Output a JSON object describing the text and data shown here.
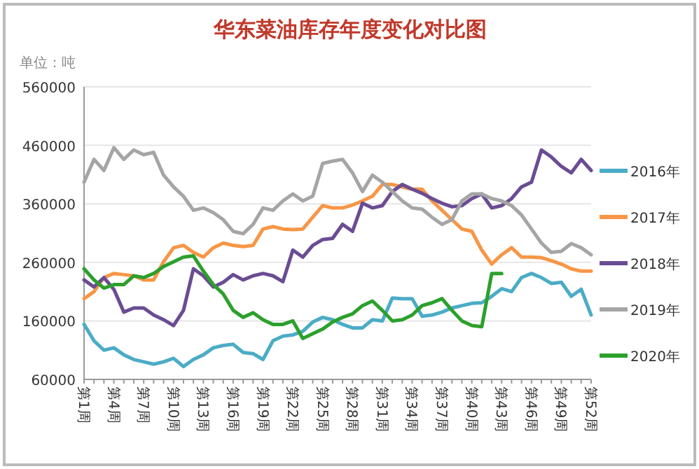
{
  "chart_data": {
    "type": "line",
    "title": "华东菜油库存年度变化对比图",
    "ylabel": "单位：吨",
    "categories": [
      "第1周",
      null,
      null,
      "第4周",
      null,
      null,
      "第7周",
      null,
      null,
      "第10周",
      null,
      null,
      "第13周",
      null,
      null,
      "第16周",
      null,
      null,
      "第19周",
      null,
      null,
      "第22周",
      null,
      null,
      "第25周",
      null,
      null,
      "第28周",
      null,
      null,
      "第31周",
      null,
      null,
      "第34周",
      null,
      null,
      "第37周",
      null,
      null,
      "第40周",
      null,
      null,
      "第43周",
      null,
      null,
      "第46周",
      null,
      null,
      "第49周",
      null,
      null,
      "第52周"
    ],
    "series": [
      {
        "name": "2016年",
        "color": "#4bacc6",
        "values": [
          154000,
          126000,
          110000,
          114000,
          102000,
          94000,
          90000,
          86000,
          90000,
          96000,
          82000,
          94000,
          102000,
          114000,
          118000,
          120000,
          106000,
          104000,
          94000,
          126000,
          134000,
          136000,
          142000,
          158000,
          166000,
          162000,
          154000,
          148000,
          148000,
          162000,
          160000,
          199000,
          198000,
          198000,
          168000,
          170000,
          175000,
          182000,
          186000,
          190000,
          191000,
          202000,
          215000,
          210000,
          234000,
          241000,
          234000,
          224000,
          226000,
          202000,
          214000,
          170000
        ]
      },
      {
        "name": "2017年",
        "color": "#f79646",
        "values": [
          198000,
          210000,
          234000,
          241000,
          239000,
          237000,
          230000,
          230000,
          261000,
          285000,
          289000,
          277000,
          269000,
          285000,
          293000,
          289000,
          287000,
          289000,
          317000,
          321000,
          317000,
          316000,
          317000,
          337000,
          357000,
          353000,
          353000,
          358000,
          365000,
          373000,
          393000,
          393000,
          389000,
          385000,
          385000,
          365000,
          349000,
          333000,
          317000,
          313000,
          281000,
          257000,
          273000,
          285000,
          269000,
          269000,
          268000,
          263000,
          257000,
          249000,
          245000,
          245000
        ]
      },
      {
        "name": "2018年",
        "color": "#6a4c93",
        "values": [
          230000,
          218000,
          234000,
          214000,
          175000,
          182000,
          182000,
          170000,
          162000,
          152000,
          178000,
          249000,
          237000,
          218000,
          226000,
          239000,
          230000,
          237000,
          241000,
          237000,
          227000,
          281000,
          269000,
          289000,
          299000,
          301000,
          325000,
          313000,
          361000,
          353000,
          357000,
          381000,
          393000,
          385000,
          378000,
          369000,
          361000,
          355000,
          357000,
          369000,
          377000,
          353000,
          357000,
          369000,
          389000,
          397000,
          452000,
          440000,
          424000,
          413000,
          436000,
          417000
        ]
      },
      {
        "name": "2019年",
        "color": "#a5a5a5",
        "values": [
          397000,
          436000,
          417000,
          456000,
          436000,
          452000,
          444000,
          448000,
          409000,
          389000,
          373000,
          349000,
          353000,
          345000,
          333000,
          313000,
          309000,
          325000,
          353000,
          349000,
          365000,
          377000,
          365000,
          373000,
          429000,
          433000,
          436000,
          413000,
          381000,
          409000,
          397000,
          381000,
          365000,
          353000,
          351000,
          337000,
          325000,
          333000,
          365000,
          377000,
          377000,
          369000,
          365000,
          357000,
          341000,
          317000,
          293000,
          277000,
          279000,
          292000,
          285000,
          273000
        ]
      },
      {
        "name": "2020年",
        "color": "#2ca02c",
        "values": [
          249000,
          230000,
          216000,
          222000,
          222000,
          237000,
          234000,
          241000,
          253000,
          261000,
          269000,
          271000,
          245000,
          222000,
          206000,
          178000,
          166000,
          174000,
          162000,
          154000,
          154000,
          160000,
          130000,
          138000,
          146000,
          158000,
          166000,
          172000,
          186000,
          194000,
          178000,
          160000,
          162000,
          170000,
          186000,
          191000,
          198000,
          178000,
          160000,
          152000,
          150000,
          241000,
          241000,
          null,
          null,
          null,
          null,
          null,
          null,
          null,
          null,
          null
        ]
      }
    ],
    "ylim": [
      60000,
      560000
    ],
    "yticks": [
      60000,
      160000,
      260000,
      360000,
      460000,
      560000
    ],
    "grid": "y",
    "legend": "right"
  }
}
